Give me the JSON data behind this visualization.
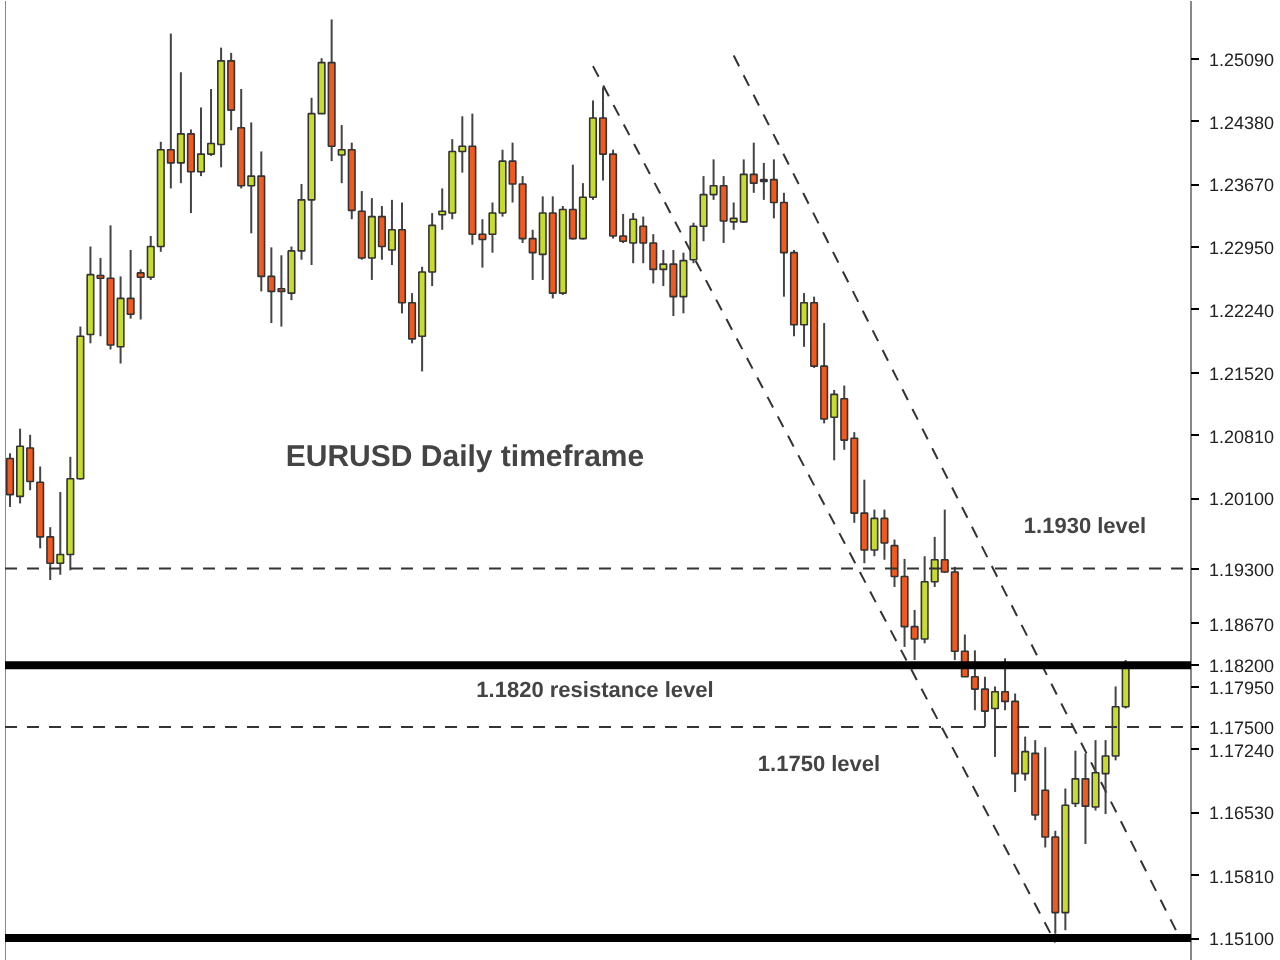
{
  "chart_data": {
    "type": "candlestick",
    "title": "EURUSD Daily timeframe",
    "categories": [
      null,
      null,
      null,
      null,
      null,
      null,
      null,
      null,
      null,
      null,
      null,
      null,
      null,
      null,
      null,
      null,
      null,
      null,
      null,
      null,
      null,
      null,
      null,
      null,
      null,
      null,
      null,
      null,
      null,
      null,
      null,
      null,
      null,
      null,
      null,
      null,
      null,
      null,
      null,
      null,
      null,
      null,
      null,
      null,
      null,
      null,
      null,
      null,
      null,
      null,
      null,
      null,
      null,
      null,
      null,
      null,
      null,
      null,
      null,
      null,
      null,
      null,
      null,
      null,
      null,
      null,
      null,
      null,
      null,
      null,
      null,
      null,
      null,
      null,
      null,
      null,
      null,
      null,
      null,
      null,
      null,
      null,
      null,
      null,
      null,
      null,
      null,
      null,
      null,
      null,
      null,
      null,
      null,
      null,
      null,
      null,
      null,
      null,
      null,
      null,
      null,
      null,
      null,
      null,
      null,
      null,
      null,
      null,
      null,
      null,
      null,
      null,
      null,
      null,
      null,
      null,
      null,
      null
    ],
    "ohlc": [
      [
        1.2055,
        1.2061,
        1.2,
        1.2014
      ],
      [
        1.2012,
        1.2089,
        1.2004,
        1.2069
      ],
      [
        1.2067,
        1.2082,
        1.2019,
        1.2029
      ],
      [
        1.2028,
        1.2046,
        1.1953,
        1.1966
      ],
      [
        1.1966,
        1.1977,
        1.1917,
        1.1936
      ],
      [
        1.1936,
        1.2017,
        1.1923,
        1.1946
      ],
      [
        1.1946,
        1.2057,
        1.1928,
        1.2032
      ],
      [
        1.2032,
        1.2205,
        1.2031,
        1.2194
      ],
      [
        1.2196,
        1.2296,
        1.2186,
        1.2264
      ],
      [
        1.2263,
        1.2283,
        1.2194,
        1.226
      ],
      [
        1.226,
        1.232,
        1.2179,
        1.2184
      ],
      [
        1.2182,
        1.2262,
        1.2163,
        1.2237
      ],
      [
        1.2237,
        1.2292,
        1.2214,
        1.2219
      ],
      [
        1.2266,
        1.227,
        1.2213,
        1.2261
      ],
      [
        1.2261,
        1.2308,
        1.2258,
        1.2296
      ],
      [
        1.2296,
        1.2415,
        1.229,
        1.2406
      ],
      [
        1.2406,
        1.2538,
        1.2362,
        1.2391
      ],
      [
        1.2391,
        1.2494,
        1.2368,
        1.2424
      ],
      [
        1.2424,
        1.2429,
        1.2334,
        1.2381
      ],
      [
        1.2381,
        1.2454,
        1.2376,
        1.2401
      ],
      [
        1.2401,
        1.2475,
        1.2399,
        1.2413
      ],
      [
        1.2412,
        1.2522,
        1.2386,
        1.2507
      ],
      [
        1.2507,
        1.2516,
        1.2428,
        1.2451
      ],
      [
        1.2431,
        1.2475,
        1.2362,
        1.2365
      ],
      [
        1.2365,
        1.2437,
        1.2311,
        1.2376
      ],
      [
        1.2376,
        1.2404,
        1.2245,
        1.2262
      ],
      [
        1.2262,
        1.2295,
        1.2209,
        1.2245
      ],
      [
        1.2248,
        1.2286,
        1.2205,
        1.2245
      ],
      [
        1.2243,
        1.2296,
        1.2235,
        1.2291
      ],
      [
        1.2291,
        1.2367,
        1.2281,
        1.2349
      ],
      [
        1.2349,
        1.2465,
        1.2275,
        1.2447
      ],
      [
        1.2447,
        1.251,
        1.2447,
        1.2505
      ],
      [
        1.2505,
        1.2554,
        1.2393,
        1.241
      ],
      [
        1.24,
        1.2434,
        1.2368,
        1.2406
      ],
      [
        1.2406,
        1.2414,
        1.2327,
        1.2337
      ],
      [
        1.2336,
        1.2359,
        1.2281,
        1.2283
      ],
      [
        1.2283,
        1.2351,
        1.2258,
        1.233
      ],
      [
        1.233,
        1.2342,
        1.2281,
        1.2296
      ],
      [
        1.2292,
        1.2349,
        1.2275,
        1.2315
      ],
      [
        1.2315,
        1.2346,
        1.222,
        1.2232
      ],
      [
        1.2232,
        1.2243,
        1.2186,
        1.2191
      ],
      [
        1.2194,
        1.2273,
        1.2154,
        1.2267
      ],
      [
        1.2267,
        1.2334,
        1.2251,
        1.232
      ],
      [
        1.2332,
        1.2362,
        1.2315,
        1.2336
      ],
      [
        1.2334,
        1.2418,
        1.2327,
        1.2404
      ],
      [
        1.2404,
        1.2444,
        1.238,
        1.241
      ],
      [
        1.241,
        1.2447,
        1.2298,
        1.231
      ],
      [
        1.231,
        1.2327,
        1.2272,
        1.2304
      ],
      [
        1.231,
        1.2346,
        1.2289,
        1.2334
      ],
      [
        1.2334,
        1.2406,
        1.233,
        1.2393
      ],
      [
        1.2393,
        1.2414,
        1.2346,
        1.2367
      ],
      [
        1.2367,
        1.2376,
        1.23,
        1.2305
      ],
      [
        1.2305,
        1.2315,
        1.2258,
        1.2289
      ],
      [
        1.2287,
        1.2353,
        1.2258,
        1.2334
      ],
      [
        1.2334,
        1.2353,
        1.2237,
        1.2243
      ],
      [
        1.2243,
        1.2342,
        1.2241,
        1.2338
      ],
      [
        1.2338,
        1.2389,
        1.2304,
        1.2305
      ],
      [
        1.2305,
        1.2368,
        1.2304,
        1.2352
      ],
      [
        1.2352,
        1.2462,
        1.2349,
        1.2442
      ],
      [
        1.2442,
        1.2477,
        1.2371,
        1.2401
      ],
      [
        1.2401,
        1.2406,
        1.2305,
        1.2308
      ],
      [
        1.2308,
        1.2333,
        1.23,
        1.2302
      ],
      [
        1.23,
        1.2334,
        1.2277,
        1.2327
      ],
      [
        1.2319,
        1.233,
        1.2277,
        1.23
      ],
      [
        1.23,
        1.231,
        1.2254,
        1.227
      ],
      [
        1.227,
        1.2292,
        1.2251,
        1.2276
      ],
      [
        1.2276,
        1.2292,
        1.2217,
        1.2239
      ],
      [
        1.2239,
        1.2289,
        1.222,
        1.228
      ],
      [
        1.2281,
        1.2323,
        1.2277,
        1.2319
      ],
      [
        1.2319,
        1.2376,
        1.2302,
        1.2355
      ],
      [
        1.2355,
        1.2395,
        1.2349,
        1.2365
      ],
      [
        1.2365,
        1.2376,
        1.23,
        1.2325
      ],
      [
        1.2324,
        1.2346,
        1.2315,
        1.2328
      ],
      [
        1.2324,
        1.2395,
        1.2323,
        1.2378
      ],
      [
        1.2378,
        1.2414,
        1.2357,
        1.2368
      ],
      [
        1.237,
        1.2391,
        1.2349,
        1.2372
      ],
      [
        1.2372,
        1.2395,
        1.2328,
        1.2346
      ],
      [
        1.2346,
        1.2357,
        1.2239,
        1.2289
      ],
      [
        1.2289,
        1.2292,
        1.2194,
        1.2207
      ],
      [
        1.2207,
        1.2243,
        1.2182,
        1.2232
      ],
      [
        1.2232,
        1.2239,
        1.2158,
        1.216
      ],
      [
        1.216,
        1.2209,
        1.2095,
        1.21
      ],
      [
        1.2102,
        1.2133,
        1.2053,
        1.2128
      ],
      [
        1.2123,
        1.2138,
        1.2065,
        1.2076
      ],
      [
        1.2078,
        1.2085,
        1.1982,
        1.1993
      ],
      [
        1.1993,
        1.2031,
        1.1936,
        1.1951
      ],
      [
        1.1951,
        1.1997,
        1.1944,
        1.1987
      ],
      [
        1.1987,
        1.1997,
        1.194,
        1.1959
      ],
      [
        1.1956,
        1.1963,
        1.1909,
        1.1921
      ],
      [
        1.1921,
        1.1941,
        1.1841,
        1.1864
      ],
      [
        1.1864,
        1.1883,
        1.1826,
        1.185
      ],
      [
        1.185,
        1.1944,
        1.1845,
        1.1915
      ],
      [
        1.1915,
        1.1966,
        1.1909,
        1.194
      ],
      [
        1.194,
        1.1997,
        1.1925,
        1.1926
      ],
      [
        1.1926,
        1.1932,
        1.1826,
        1.1836
      ],
      [
        1.1836,
        1.1855,
        1.1807,
        1.1807
      ],
      [
        1.1807,
        1.1837,
        1.1769,
        1.1793
      ],
      [
        1.1793,
        1.1807,
        1.175,
        1.1768
      ],
      [
        1.1771,
        1.1796,
        1.1716,
        1.179
      ],
      [
        1.179,
        1.1828,
        1.1769,
        1.1779
      ],
      [
        1.1779,
        1.1788,
        1.1676,
        1.1697
      ],
      [
        1.1697,
        1.1739,
        1.1689,
        1.1722
      ],
      [
        1.172,
        1.1735,
        1.1644,
        1.165
      ],
      [
        1.1678,
        1.1727,
        1.1613,
        1.1625
      ],
      [
        1.1625,
        1.1632,
        1.1515,
        1.1539
      ],
      [
        1.1539,
        1.168,
        1.1519,
        1.1661
      ],
      [
        1.1663,
        1.1723,
        1.1659,
        1.1691
      ],
      [
        1.1691,
        1.172,
        1.1617,
        1.166
      ],
      [
        1.1659,
        1.1735,
        1.1655,
        1.1698
      ],
      [
        1.1697,
        1.1735,
        1.1651,
        1.1717
      ],
      [
        1.1717,
        1.1796,
        1.1712,
        1.1773
      ],
      [
        1.1773,
        1.1826,
        1.1771,
        1.1818
      ],
      null,
      null,
      null,
      null,
      null,
      null
    ],
    "colors": [
      "#f05a1e",
      "#c8dc2c",
      "#f05a1e",
      "#f05a1e",
      "#f05a1e",
      "#c8dc2c",
      "#c8dc2c",
      "#c8dc2c",
      "#c8dc2c",
      "#f05a1e",
      "#f05a1e",
      "#c8dc2c",
      "#f05a1e",
      "#f05a1e",
      "#c8dc2c",
      "#c8dc2c",
      "#f05a1e",
      "#c8dc2c",
      "#f05a1e",
      "#c8dc2c",
      "#c8dc2c",
      "#c8dc2c",
      "#f05a1e",
      "#f05a1e",
      "#c8dc2c",
      "#f05a1e",
      "#f05a1e",
      "#f05a1e",
      "#c8dc2c",
      "#c8dc2c",
      "#c8dc2c",
      "#c8dc2c",
      "#f05a1e",
      "#c8dc2c",
      "#f05a1e",
      "#f05a1e",
      "#c8dc2c",
      "#f05a1e",
      "#c8dc2c",
      "#f05a1e",
      "#f05a1e",
      "#c8dc2c",
      "#c8dc2c",
      "#c8dc2c",
      "#c8dc2c",
      "#c8dc2c",
      "#f05a1e",
      "#f05a1e",
      "#c8dc2c",
      "#c8dc2c",
      "#f05a1e",
      "#f05a1e",
      "#f05a1e",
      "#c8dc2c",
      "#f05a1e",
      "#c8dc2c",
      "#f05a1e",
      "#c8dc2c",
      "#c8dc2c",
      "#f05a1e",
      "#f05a1e",
      "#f05a1e",
      "#c8dc2c",
      "#f05a1e",
      "#f05a1e",
      "#c8dc2c",
      "#f05a1e",
      "#c8dc2c",
      "#c8dc2c",
      "#c8dc2c",
      "#c8dc2c",
      "#f05a1e",
      "#c8dc2c",
      "#c8dc2c",
      "#f05a1e",
      "#c8dc2c",
      "#f05a1e",
      "#f05a1e",
      "#f05a1e",
      "#c8dc2c",
      "#f05a1e",
      "#f05a1e",
      "#c8dc2c",
      "#f05a1e",
      "#f05a1e",
      "#f05a1e",
      "#c8dc2c",
      "#f05a1e",
      "#f05a1e",
      "#f05a1e",
      "#f05a1e",
      "#c8dc2c",
      "#c8dc2c",
      "#f05a1e",
      "#f05a1e",
      "#f05a1e",
      "#f05a1e",
      "#f05a1e",
      "#c8dc2c",
      "#f05a1e",
      "#f05a1e",
      "#c8dc2c",
      "#f05a1e",
      "#f05a1e",
      "#f05a1e",
      "#c8dc2c",
      "#c8dc2c",
      "#f05a1e",
      "#c8dc2c",
      "#c8dc2c",
      "#c8dc2c",
      "#c8dc2c",
      null,
      null,
      null,
      null,
      null,
      null
    ],
    "series": [
      {
        "type": "line",
        "color": "#333333",
        "line_style": "dashed",
        "values": [
          null,
          null,
          null,
          null,
          null,
          null,
          null,
          null,
          null,
          null,
          null,
          null,
          null,
          null,
          null,
          null,
          null,
          null,
          null,
          null,
          null,
          null,
          null,
          null,
          null,
          null,
          null,
          null,
          null,
          null,
          null,
          null,
          null,
          null,
          null,
          null,
          null,
          null,
          null,
          null,
          null,
          null,
          null,
          null,
          null,
          null,
          null,
          null,
          null,
          null,
          null,
          null,
          null,
          null,
          null,
          null,
          null,
          null,
          null,
          null,
          null,
          null,
          null,
          null,
          null,
          null,
          null,
          null,
          null,
          null,
          null,
          null,
          1.2513,
          null,
          null,
          null,
          null,
          null,
          null,
          null,
          null,
          null,
          null,
          null,
          null,
          null,
          null,
          null,
          null,
          null,
          null,
          null,
          null,
          null,
          null,
          null,
          null,
          null,
          null,
          null,
          null,
          null,
          null,
          null,
          null,
          null,
          null,
          null,
          null,
          null,
          null,
          null,
          null,
          null,
          null,
          null,
          1.1519,
          null
        ]
      },
      {
        "type": "line",
        "color": "#333333",
        "line_style": "dashed",
        "values": [
          null,
          null,
          null,
          null,
          null,
          null,
          null,
          null,
          null,
          null,
          null,
          null,
          null,
          null,
          null,
          null,
          null,
          null,
          null,
          null,
          null,
          null,
          null,
          null,
          null,
          null,
          null,
          null,
          null,
          null,
          null,
          null,
          null,
          null,
          null,
          null,
          null,
          null,
          null,
          null,
          null,
          null,
          null,
          null,
          null,
          null,
          null,
          null,
          null,
          null,
          null,
          null,
          null,
          null,
          null,
          null,
          null,
          null,
          1.2501,
          null,
          null,
          null,
          null,
          null,
          null,
          null,
          null,
          null,
          null,
          null,
          null,
          null,
          null,
          null,
          null,
          null,
          null,
          null,
          null,
          null,
          null,
          null,
          null,
          null,
          null,
          null,
          null,
          null,
          null,
          null,
          null,
          null,
          null,
          null,
          null,
          null,
          null,
          null,
          null,
          null,
          null,
          null,
          null,
          null,
          1.1505,
          null,
          null,
          null,
          null,
          null,
          null,
          null,
          null,
          null,
          null,
          null,
          null,
          null
        ]
      }
    ],
    "ylim": [
      1.1484,
      1.2575
    ],
    "yticks": [
      {
        "value": 1.2509,
        "label": "1.25090"
      },
      {
        "value": 1.2438,
        "label": "1.24380"
      },
      {
        "value": 1.2367,
        "label": "1.23670"
      },
      {
        "value": 1.2295,
        "label": "1.22950"
      },
      {
        "value": 1.2224,
        "label": "1.22240"
      },
      {
        "value": 1.2152,
        "label": "1.21520"
      },
      {
        "value": 1.2081,
        "label": "1.20810"
      },
      {
        "value": 1.201,
        "label": "1.20100"
      },
      {
        "value": 1.1867,
        "label": "1.18670"
      },
      {
        "value": 1.1795,
        "label": "1.17950"
      },
      {
        "value": 1.1724,
        "label": "1.17240"
      },
      {
        "value": 1.1653,
        "label": "1.16530"
      },
      {
        "value": 1.1581,
        "label": "1.15810"
      }
    ],
    "ref_lines": [
      {
        "axis": "y",
        "value": 1.193,
        "label": "1.19300",
        "color": "#333333",
        "line_style": "dashed"
      },
      {
        "axis": "y",
        "value": 1.182,
        "label": "1.18200",
        "color": "#000000",
        "line_style": "solid"
      },
      {
        "axis": "y",
        "value": 1.175,
        "label": "1.17500",
        "color": "#333333",
        "line_style": "dashed"
      },
      {
        "axis": "y",
        "value": 1.151,
        "label": "1.15100",
        "color": "#000000",
        "line_style": "solid"
      }
    ],
    "annotations": [
      "1.1930 level",
      "1.1820 resistance level",
      "1.1750 level"
    ],
    "tick_labels": "y",
    "grid": false
  }
}
